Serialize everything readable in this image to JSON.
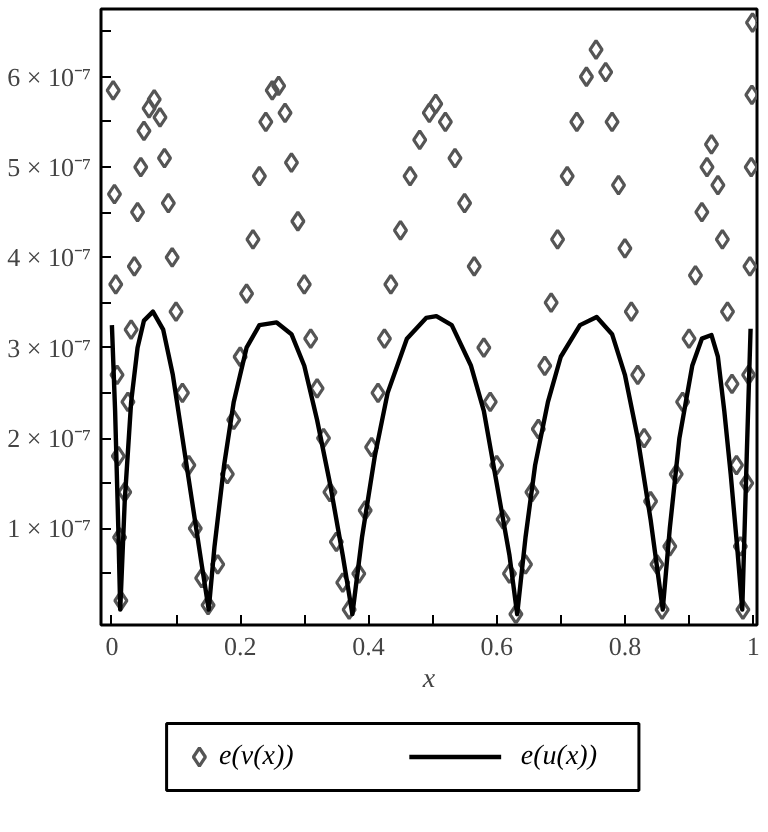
{
  "chart_data": {
    "type": "scatter",
    "xlabel": "x",
    "xlim": [
      -0.017,
      1.006
    ],
    "ylim": [
      -7e-09,
      6.75e-07
    ],
    "xticks": [
      0,
      {
        "value": 0.1,
        "label": null
      },
      0.2,
      {
        "value": 0.3,
        "label": null
      },
      0.4,
      {
        "value": 0.5,
        "label": null
      },
      0.6,
      {
        "value": 0.7,
        "label": null
      },
      0.8,
      {
        "value": 0.9,
        "label": null
      },
      1
    ],
    "yticks": [
      {
        "value": 5e-08,
        "label": null
      },
      {
        "value": 1e-07,
        "label": "1 × 10⁻⁷"
      },
      {
        "value": 1.5e-07,
        "label": null
      },
      {
        "value": 2e-07,
        "label": "2 × 10⁻⁷"
      },
      {
        "value": 2.5e-07,
        "label": null
      },
      {
        "value": 3e-07,
        "label": "3 × 10⁻⁷"
      },
      {
        "value": 3.5e-07,
        "label": null
      },
      {
        "value": 4e-07,
        "label": "4 × 10⁻⁷"
      },
      {
        "value": 4.5e-07,
        "label": null
      },
      {
        "value": 5e-07,
        "label": "5 × 10⁻⁷"
      },
      {
        "value": 5.5e-07,
        "label": null
      },
      {
        "value": 6e-07,
        "label": "6 × 10⁻⁷"
      },
      {
        "value": 6.5e-07,
        "label": null
      }
    ],
    "grid": false,
    "legend": "bottom",
    "series": [
      {
        "name": "e(v(x))",
        "marker": "diamond",
        "color": "#555555",
        "x": [
          0.002,
          0.004,
          0.006,
          0.008,
          0.01,
          0.012,
          0.014,
          0.02,
          0.025,
          0.03,
          0.035,
          0.04,
          0.045,
          0.05,
          0.058,
          0.066,
          0.075,
          0.082,
          0.088,
          0.094,
          0.1,
          0.11,
          0.12,
          0.13,
          0.14,
          0.15,
          0.165,
          0.18,
          0.19,
          0.2,
          0.21,
          0.22,
          0.23,
          0.24,
          0.25,
          0.26,
          0.27,
          0.28,
          0.29,
          0.3,
          0.31,
          0.32,
          0.33,
          0.34,
          0.35,
          0.36,
          0.37,
          0.385,
          0.395,
          0.405,
          0.415,
          0.425,
          0.435,
          0.45,
          0.465,
          0.48,
          0.495,
          0.505,
          0.52,
          0.535,
          0.55,
          0.565,
          0.58,
          0.59,
          0.6,
          0.61,
          0.62,
          0.63,
          0.645,
          0.655,
          0.665,
          0.675,
          0.685,
          0.695,
          0.71,
          0.725,
          0.74,
          0.755,
          0.77,
          0.78,
          0.79,
          0.8,
          0.81,
          0.82,
          0.83,
          0.84,
          0.85,
          0.858,
          0.87,
          0.88,
          0.89,
          0.9,
          0.91,
          0.92,
          0.928,
          0.935,
          0.945,
          0.952,
          0.96,
          0.967,
          0.974,
          0.98,
          0.984,
          0.99,
          0.993,
          0.995,
          0.997,
          0.998,
          0.999
        ],
        "values": [
          5.85e-07,
          4.7e-07,
          3.7e-07,
          2.7e-07,
          1.8e-07,
          9e-08,
          2e-08,
          1.4e-07,
          2.4e-07,
          3.2e-07,
          3.9e-07,
          4.5e-07,
          5e-07,
          5.4e-07,
          5.65e-07,
          5.75e-07,
          5.55e-07,
          5.1e-07,
          4.6e-07,
          4e-07,
          3.4e-07,
          2.5e-07,
          1.7e-07,
          1e-07,
          4.5e-08,
          1.5e-08,
          6e-08,
          1.6e-07,
          2.2e-07,
          2.9e-07,
          3.6e-07,
          4.2e-07,
          4.9e-07,
          5.5e-07,
          5.85e-07,
          5.9e-07,
          5.6e-07,
          5.05e-07,
          4.4e-07,
          3.7e-07,
          3.1e-07,
          2.55e-07,
          2e-07,
          1.4e-07,
          8.5e-08,
          4e-08,
          1e-08,
          5e-08,
          1.2e-07,
          1.9e-07,
          2.5e-07,
          3.1e-07,
          3.7e-07,
          4.3e-07,
          4.9e-07,
          5.3e-07,
          5.6e-07,
          5.7e-07,
          5.5e-07,
          5.1e-07,
          4.6e-07,
          3.9e-07,
          3e-07,
          2.4e-07,
          1.7e-07,
          1.1e-07,
          5e-08,
          5e-09,
          6e-08,
          1.4e-07,
          2.1e-07,
          2.8e-07,
          3.5e-07,
          4.2e-07,
          4.9e-07,
          5.5e-07,
          6e-07,
          6.3e-07,
          6.05e-07,
          5.5e-07,
          4.8e-07,
          4.1e-07,
          3.4e-07,
          2.7e-07,
          2e-07,
          1.3e-07,
          6e-08,
          1e-08,
          8e-08,
          1.6e-07,
          2.4e-07,
          3.1e-07,
          3.8e-07,
          4.5e-07,
          5e-07,
          5.25e-07,
          4.8e-07,
          4.2e-07,
          3.4e-07,
          2.6e-07,
          1.7e-07,
          8e-08,
          1e-08,
          1.5e-07,
          2.7e-07,
          3.9e-07,
          5e-07,
          5.8e-07,
          6.6e-07
        ]
      },
      {
        "name": "e(u(x))",
        "type": "line",
        "marker": "none",
        "line_style": "solid",
        "color": "#000000",
        "x": [
          0,
          0.005,
          0.01,
          0.013,
          0.02,
          0.03,
          0.04,
          0.05,
          0.064,
          0.08,
          0.095,
          0.11,
          0.125,
          0.14,
          0.151,
          0.16,
          0.175,
          0.19,
          0.21,
          0.23,
          0.257,
          0.28,
          0.3,
          0.32,
          0.34,
          0.36,
          0.375,
          0.39,
          0.41,
          0.43,
          0.46,
          0.49,
          0.506,
          0.53,
          0.56,
          0.58,
          0.6,
          0.62,
          0.632,
          0.645,
          0.66,
          0.68,
          0.7,
          0.73,
          0.756,
          0.78,
          0.8,
          0.82,
          0.84,
          0.859,
          0.87,
          0.885,
          0.905,
          0.92,
          0.935,
          0.945,
          0.955,
          0.965,
          0.975,
          0.983,
          0.99,
          0.996
        ],
        "values": [
          3.25e-07,
          2.3e-07,
          1e-07,
          1e-08,
          1.3e-07,
          2.4e-07,
          3e-07,
          3.3e-07,
          3.4e-07,
          3.2e-07,
          2.7e-07,
          2e-07,
          1.3e-07,
          6e-08,
          1e-08,
          8e-08,
          1.7e-07,
          2.4e-07,
          3e-07,
          3.25e-07,
          3.28e-07,
          3.15e-07,
          2.8e-07,
          2.2e-07,
          1.5e-07,
          7e-08,
          5e-09,
          9e-08,
          1.8e-07,
          2.5e-07,
          3.1e-07,
          3.33e-07,
          3.35e-07,
          3.25e-07,
          2.8e-07,
          2.3e-07,
          1.5e-07,
          7e-08,
          5e-09,
          9e-08,
          1.7e-07,
          2.4e-07,
          2.9e-07,
          3.25e-07,
          3.34e-07,
          3.15e-07,
          2.7e-07,
          2e-07,
          1.1e-07,
          1e-08,
          1e-07,
          2e-07,
          2.8e-07,
          3.1e-07,
          3.14e-07,
          2.9e-07,
          2.3e-07,
          1.6e-07,
          8e-08,
          1e-08,
          1.8e-07,
          3.21e-07
        ]
      }
    ]
  }
}
